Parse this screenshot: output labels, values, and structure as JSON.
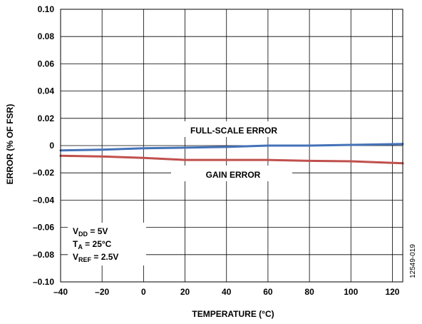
{
  "chart_data": {
    "type": "line",
    "xlabel": "TEMPERATURE (°C)",
    "ylabel": "ERROR (% OF FSR)",
    "xlim": [
      -40,
      125
    ],
    "ylim": [
      -0.1,
      0.1
    ],
    "x_ticks": [
      -40,
      -20,
      0,
      20,
      40,
      60,
      80,
      100,
      120
    ],
    "x_tick_labels": [
      "–40",
      "–20",
      "0",
      "20",
      "40",
      "60",
      "80",
      "100",
      "120"
    ],
    "y_ticks": [
      0.1,
      0.08,
      0.06,
      0.04,
      0.02,
      0,
      -0.02,
      -0.04,
      -0.06,
      -0.08,
      -0.1
    ],
    "y_tick_labels": [
      "0.10",
      "0.08",
      "0.06",
      "0.04",
      "0.02",
      "0",
      "–0.02",
      "–0.04",
      "–0.06",
      "–0.08",
      "–0.10"
    ],
    "grid": true,
    "series": [
      {
        "name": "FULL-SCALE ERROR",
        "color": "#4472b8",
        "x": [
          -40,
          -20,
          0,
          20,
          40,
          60,
          80,
          100,
          125
        ],
        "y": [
          -0.0035,
          -0.003,
          -0.002,
          -0.0015,
          -0.001,
          0.0,
          0.0,
          0.0005,
          0.0012
        ]
      },
      {
        "name": "GAIN ERROR",
        "color": "#c0504d",
        "x": [
          -40,
          -20,
          0,
          20,
          40,
          60,
          80,
          100,
          125
        ],
        "y": [
          -0.0075,
          -0.008,
          -0.009,
          -0.0105,
          -0.0105,
          -0.0105,
          -0.0112,
          -0.0115,
          -0.013
        ]
      }
    ],
    "conditions": {
      "vdd": {
        "main": "V",
        "sub": "DD",
        "rest": " = 5V"
      },
      "ta": {
        "main": "T",
        "sub": "A",
        "rest": " = 25°C"
      },
      "vref": {
        "main": "V",
        "sub": "REF",
        "rest": " = 2.5V"
      }
    },
    "figure_id": "12549-019"
  }
}
